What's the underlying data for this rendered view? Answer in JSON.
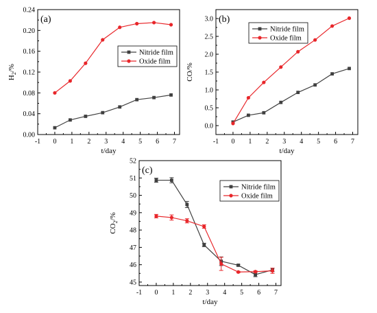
{
  "chart_data": [
    {
      "panel": "(a)",
      "type": "line",
      "xlabel": "t/day",
      "ylabel": "H2/%",
      "ylabel_main": "H",
      "ylabel_sub": "2",
      "ylabel_tail": "/%",
      "xlim": [
        -1,
        7.3
      ],
      "ylim": [
        0,
        0.24
      ],
      "xticks": [
        -1,
        0,
        1,
        2,
        3,
        4,
        5,
        6,
        7
      ],
      "yticks": [
        0.0,
        0.04,
        0.08,
        0.12,
        0.16,
        0.2,
        0.24
      ],
      "ytick_labels": [
        "0.00",
        "0.04",
        "0.08",
        "0.12",
        "0.16",
        "0.20",
        "0.24"
      ],
      "legend_position": "upper-right",
      "series": [
        {
          "name": "Nitride film",
          "color": "#404040",
          "marker": "square",
          "x": [
            0,
            0.9,
            1.8,
            2.8,
            3.8,
            4.8,
            5.8,
            6.8
          ],
          "y": [
            0.013,
            0.028,
            0.035,
            0.042,
            0.053,
            0.067,
            0.071,
            0.076
          ]
        },
        {
          "name": "Oxide film",
          "color": "#e8262a",
          "marker": "circle",
          "x": [
            0,
            0.9,
            1.8,
            2.8,
            3.8,
            4.8,
            5.8,
            6.8
          ],
          "y": [
            0.08,
            0.103,
            0.137,
            0.182,
            0.206,
            0.213,
            0.215,
            0.211
          ]
        }
      ]
    },
    {
      "panel": "(b)",
      "type": "line",
      "xlabel": "t/day",
      "ylabel": "CO/%",
      "ylabel_main": "CO",
      "ylabel_sub": "",
      "ylabel_tail": "/%",
      "xlim": [
        -1,
        7.3
      ],
      "ylim": [
        -0.25,
        3.25
      ],
      "xticks": [
        -1,
        0,
        1,
        2,
        3,
        4,
        5,
        6,
        7
      ],
      "yticks": [
        0.0,
        0.5,
        1.0,
        1.5,
        2.0,
        2.5,
        3.0
      ],
      "ytick_labels": [
        "0.0",
        "0.5",
        "1.0",
        "1.5",
        "2.0",
        "2.5",
        "3.0"
      ],
      "legend_position": "upper-left",
      "series": [
        {
          "name": "Nitride film",
          "color": "#404040",
          "marker": "square",
          "x": [
            0,
            0.9,
            1.8,
            2.8,
            3.8,
            4.8,
            5.8,
            6.8
          ],
          "y": [
            0.1,
            0.29,
            0.36,
            0.65,
            0.93,
            1.14,
            1.45,
            1.6
          ]
        },
        {
          "name": "Oxide film",
          "color": "#e8262a",
          "marker": "circle",
          "x": [
            0,
            0.9,
            1.8,
            2.8,
            3.8,
            4.8,
            5.8,
            6.8
          ],
          "y": [
            0.06,
            0.78,
            1.21,
            1.64,
            2.07,
            2.4,
            2.79,
            3.01
          ]
        }
      ]
    },
    {
      "panel": "(c)",
      "type": "line",
      "xlabel": "t/day",
      "ylabel": "CO2/%",
      "ylabel_main": "CO",
      "ylabel_sub": "2",
      "ylabel_tail": "/%",
      "xlim": [
        -1,
        7.3
      ],
      "ylim": [
        44.8,
        52
      ],
      "xticks": [
        -1,
        0,
        1,
        2,
        3,
        4,
        5,
        6,
        7
      ],
      "yticks": [
        45,
        46,
        47,
        48,
        49,
        50,
        51,
        52
      ],
      "ytick_labels": [
        "45",
        "46",
        "47",
        "48",
        "49",
        "50",
        "51",
        "52"
      ],
      "legend_position": "upper-right",
      "error_bars": true,
      "series": [
        {
          "name": "Nitride film",
          "color": "#404040",
          "marker": "square",
          "x": [
            0,
            0.9,
            1.8,
            2.8,
            3.8,
            4.8,
            5.8,
            6.8
          ],
          "y": [
            50.87,
            50.87,
            49.47,
            47.14,
            46.2,
            45.97,
            45.43,
            45.7
          ],
          "err": [
            0.12,
            0.15,
            0.18,
            0.1,
            0.25,
            0.05,
            0.12,
            0.1
          ]
        },
        {
          "name": "Oxide film",
          "color": "#e8262a",
          "marker": "circle",
          "x": [
            0,
            0.9,
            1.8,
            2.8,
            3.8,
            4.8,
            5.8,
            6.8
          ],
          "y": [
            48.8,
            48.72,
            48.53,
            48.2,
            46.05,
            45.58,
            45.6,
            45.65
          ],
          "err": [
            0.1,
            0.15,
            0.12,
            0.1,
            0.38,
            0.04,
            0.05,
            0.15
          ]
        }
      ]
    }
  ]
}
